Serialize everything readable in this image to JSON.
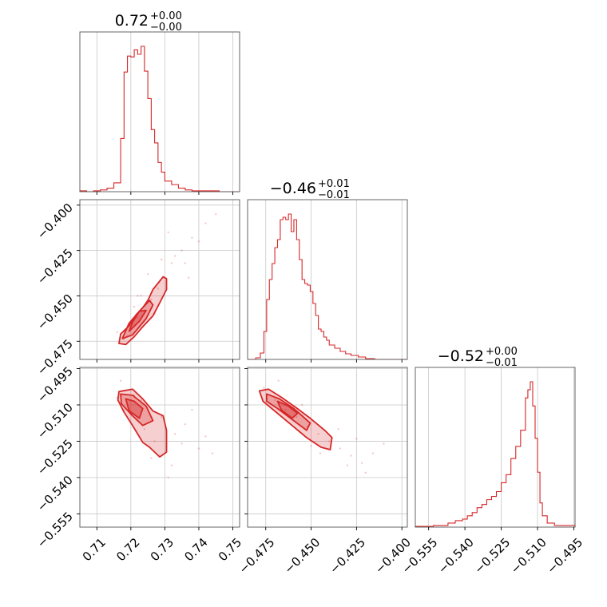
{
  "chart_data": {
    "type": "corner",
    "color": "#d62728",
    "grid": true,
    "parameters": [
      {
        "range": [
          0.705,
          0.752
        ],
        "ticks": [
          0.71,
          0.72,
          0.73,
          0.74,
          0.75
        ],
        "tick_labels": [
          "0.71",
          "0.72",
          "0.73",
          "0.74",
          "0.75"
        ],
        "title": {
          "value": "0.72",
          "plus": "+0.00",
          "minus": "−0.00"
        }
      },
      {
        "range": [
          -0.485,
          -0.397
        ],
        "ticks": [
          -0.475,
          -0.45,
          -0.425,
          -0.4
        ],
        "tick_labels": [
          "−0.475",
          "−0.450",
          "−0.425",
          "−0.400"
        ],
        "title": {
          "value": "−0.46",
          "plus": "+0.01",
          "minus": "−0.01"
        }
      },
      {
        "range": [
          -0.5605,
          -0.4945
        ],
        "ticks": [
          -0.555,
          -0.54,
          -0.525,
          -0.51,
          -0.495
        ],
        "tick_labels": [
          "−0.555",
          "−0.540",
          "−0.525",
          "−0.510",
          "−0.495"
        ],
        "title": {
          "value": "−0.52",
          "plus": "+0.00",
          "minus": "−0.01"
        }
      }
    ],
    "histograms": [
      {
        "param": 0,
        "bins": [
          0.705,
          0.707,
          0.709,
          0.711,
          0.713,
          0.715,
          0.717,
          0.718,
          0.719,
          0.72,
          0.721,
          0.722,
          0.723,
          0.724,
          0.725,
          0.726,
          0.727,
          0.728,
          0.729,
          0.73,
          0.732,
          0.734,
          0.736,
          0.738,
          0.742,
          0.746,
          0.752
        ],
        "counts": [
          1,
          0,
          1,
          2,
          4,
          10,
          60,
          135,
          153,
          152,
          160,
          155,
          164,
          136,
          105,
          70,
          55,
          33,
          22,
          12,
          8,
          4,
          2,
          1,
          1,
          0
        ]
      },
      {
        "param": 1,
        "bins": [
          -0.485,
          -0.4805,
          -0.478,
          -0.476,
          -0.4745,
          -0.473,
          -0.4715,
          -0.47,
          -0.4685,
          -0.467,
          -0.4655,
          -0.464,
          -0.4625,
          -0.461,
          -0.4595,
          -0.458,
          -0.4565,
          -0.455,
          -0.4535,
          -0.452,
          -0.4505,
          -0.449,
          -0.4475,
          -0.446,
          -0.4445,
          -0.443,
          -0.4415,
          -0.44,
          -0.437,
          -0.434,
          -0.431,
          -0.428,
          -0.424,
          -0.42,
          -0.415,
          -0.409,
          -0.397
        ],
        "counts": [
          0,
          2,
          8,
          35,
          75,
          100,
          120,
          140,
          150,
          175,
          178,
          175,
          182,
          160,
          175,
          150,
          125,
          100,
          95,
          93,
          85,
          70,
          55,
          38,
          35,
          28,
          24,
          18,
          14,
          10,
          7,
          5,
          3,
          1,
          0,
          0
        ]
      },
      {
        "param": 2,
        "bins": [
          -0.5605,
          -0.557,
          -0.553,
          -0.55,
          -0.547,
          -0.544,
          -0.541,
          -0.539,
          -0.537,
          -0.535,
          -0.533,
          -0.531,
          -0.529,
          -0.527,
          -0.525,
          -0.523,
          -0.521,
          -0.519,
          -0.517,
          -0.515,
          -0.514,
          -0.513,
          -0.512,
          -0.511,
          -0.51,
          -0.509,
          -0.508,
          -0.506,
          -0.503,
          -0.4945
        ],
        "counts": [
          1,
          1,
          2,
          2,
          5,
          8,
          10,
          14,
          18,
          24,
          28,
          34,
          38,
          44,
          55,
          65,
          85,
          100,
          120,
          160,
          170,
          180,
          150,
          110,
          68,
          30,
          14,
          5,
          2
        ]
      }
    ],
    "scatter": [
      {
        "x_param": 0,
        "y_param": 1,
        "x": [
          0.718,
          0.72,
          0.722,
          0.724,
          0.726,
          0.728,
          0.73,
          0.732,
          0.735,
          0.738,
          0.742,
          0.745,
          0.716,
          0.719,
          0.721,
          0.723,
          0.727,
          0.729,
          0.733,
          0.737,
          0.74,
          0.725,
          0.722,
          0.731,
          0.736
        ],
        "y": [
          -0.474,
          -0.468,
          -0.462,
          -0.458,
          -0.452,
          -0.446,
          -0.44,
          -0.432,
          -0.425,
          -0.418,
          -0.41,
          -0.405,
          -0.47,
          -0.472,
          -0.456,
          -0.45,
          -0.46,
          -0.43,
          -0.428,
          -0.44,
          -0.42,
          -0.438,
          -0.45,
          -0.415,
          -0.432
        ]
      },
      {
        "x_param": 0,
        "y_param": 2,
        "x": [
          0.716,
          0.718,
          0.721,
          0.724,
          0.727,
          0.73,
          0.733,
          0.736,
          0.74,
          0.744,
          0.72,
          0.723,
          0.726,
          0.729,
          0.732,
          0.717,
          0.735,
          0.738,
          0.742,
          0.731
        ],
        "y": [
          -0.507,
          -0.512,
          -0.506,
          -0.52,
          -0.525,
          -0.53,
          -0.522,
          -0.518,
          -0.528,
          -0.53,
          -0.514,
          -0.508,
          -0.532,
          -0.515,
          -0.535,
          -0.5,
          -0.526,
          -0.512,
          -0.523,
          -0.54
        ]
      },
      {
        "x_param": 1,
        "y_param": 2,
        "x": [
          -0.476,
          -0.47,
          -0.464,
          -0.458,
          -0.452,
          -0.446,
          -0.44,
          -0.434,
          -0.428,
          -0.422,
          -0.416,
          -0.41,
          -0.468,
          -0.455,
          -0.445,
          -0.435,
          -0.425,
          -0.43,
          -0.45,
          -0.42
        ],
        "y": [
          -0.503,
          -0.508,
          -0.512,
          -0.515,
          -0.519,
          -0.522,
          -0.525,
          -0.528,
          -0.531,
          -0.534,
          -0.53,
          -0.526,
          -0.5,
          -0.51,
          -0.53,
          -0.52,
          -0.524,
          -0.535,
          -0.527,
          -0.538
        ]
      }
    ],
    "contours": [
      {
        "x_param": 0,
        "y_param": 1,
        "outer": [
          [
            0.7165,
            -0.4762
          ],
          [
            0.7185,
            -0.4768
          ],
          [
            0.721,
            -0.4725
          ],
          [
            0.7235,
            -0.467
          ],
          [
            0.7265,
            -0.461
          ],
          [
            0.729,
            -0.452
          ],
          [
            0.7305,
            -0.4465
          ],
          [
            0.7305,
            -0.4405
          ],
          [
            0.7295,
            -0.4395
          ],
          [
            0.7265,
            -0.4465
          ],
          [
            0.725,
            -0.4525
          ],
          [
            0.7235,
            -0.4565
          ],
          [
            0.7215,
            -0.4605
          ],
          [
            0.7195,
            -0.4665
          ],
          [
            0.717,
            -0.471
          ]
        ],
        "middle": [
          [
            0.7175,
            -0.4735
          ],
          [
            0.7205,
            -0.4715
          ],
          [
            0.7245,
            -0.4625
          ],
          [
            0.7265,
            -0.455
          ],
          [
            0.7255,
            -0.4525
          ],
          [
            0.7225,
            -0.4585
          ],
          [
            0.7195,
            -0.465
          ]
        ],
        "inner": [
          [
            0.7195,
            -0.4695
          ],
          [
            0.7225,
            -0.464
          ],
          [
            0.7245,
            -0.458
          ],
          [
            0.7225,
            -0.4585
          ],
          [
            0.7205,
            -0.4645
          ]
        ]
      },
      {
        "x_param": 0,
        "y_param": 2,
        "outer": [
          [
            0.7165,
            -0.5045
          ],
          [
            0.7205,
            -0.5035
          ],
          [
            0.7235,
            -0.5075
          ],
          [
            0.7265,
            -0.5125
          ],
          [
            0.7295,
            -0.5145
          ],
          [
            0.7305,
            -0.5205
          ],
          [
            0.7305,
            -0.5295
          ],
          [
            0.7285,
            -0.5315
          ],
          [
            0.7255,
            -0.5275
          ],
          [
            0.7235,
            -0.5255
          ],
          [
            0.7205,
            -0.5185
          ],
          [
            0.718,
            -0.513
          ],
          [
            0.7162,
            -0.508
          ]
        ],
        "middle": [
          [
            0.717,
            -0.5055
          ],
          [
            0.7205,
            -0.506
          ],
          [
            0.7245,
            -0.5105
          ],
          [
            0.7265,
            -0.5165
          ],
          [
            0.7235,
            -0.5185
          ],
          [
            0.7205,
            -0.5145
          ],
          [
            0.7172,
            -0.5095
          ]
        ],
        "inner": [
          [
            0.7185,
            -0.5075
          ],
          [
            0.721,
            -0.5085
          ],
          [
            0.7235,
            -0.5115
          ],
          [
            0.7225,
            -0.5155
          ],
          [
            0.7195,
            -0.5125
          ]
        ]
      },
      {
        "x_param": 1,
        "y_param": 2,
        "outer": [
          [
            -0.4785,
            -0.5042
          ],
          [
            -0.4735,
            -0.5035
          ],
          [
            -0.4665,
            -0.5068
          ],
          [
            -0.4585,
            -0.511
          ],
          [
            -0.4505,
            -0.5155
          ],
          [
            -0.4425,
            -0.5205
          ],
          [
            -0.4385,
            -0.5235
          ],
          [
            -0.4395,
            -0.5285
          ],
          [
            -0.4445,
            -0.5275
          ],
          [
            -0.4525,
            -0.5235
          ],
          [
            -0.4605,
            -0.5185
          ],
          [
            -0.4685,
            -0.5135
          ],
          [
            -0.4765,
            -0.5085
          ]
        ],
        "middle": [
          [
            -0.4745,
            -0.5055
          ],
          [
            -0.4675,
            -0.5075
          ],
          [
            -0.4595,
            -0.5115
          ],
          [
            -0.4505,
            -0.5175
          ],
          [
            -0.4525,
            -0.5205
          ],
          [
            -0.4605,
            -0.516
          ],
          [
            -0.4685,
            -0.5115
          ],
          [
            -0.4745,
            -0.5085
          ]
        ],
        "inner": [
          [
            -0.4685,
            -0.5085
          ],
          [
            -0.4625,
            -0.5105
          ],
          [
            -0.4575,
            -0.5135
          ],
          [
            -0.4605,
            -0.5155
          ],
          [
            -0.4665,
            -0.512
          ]
        ]
      }
    ]
  }
}
